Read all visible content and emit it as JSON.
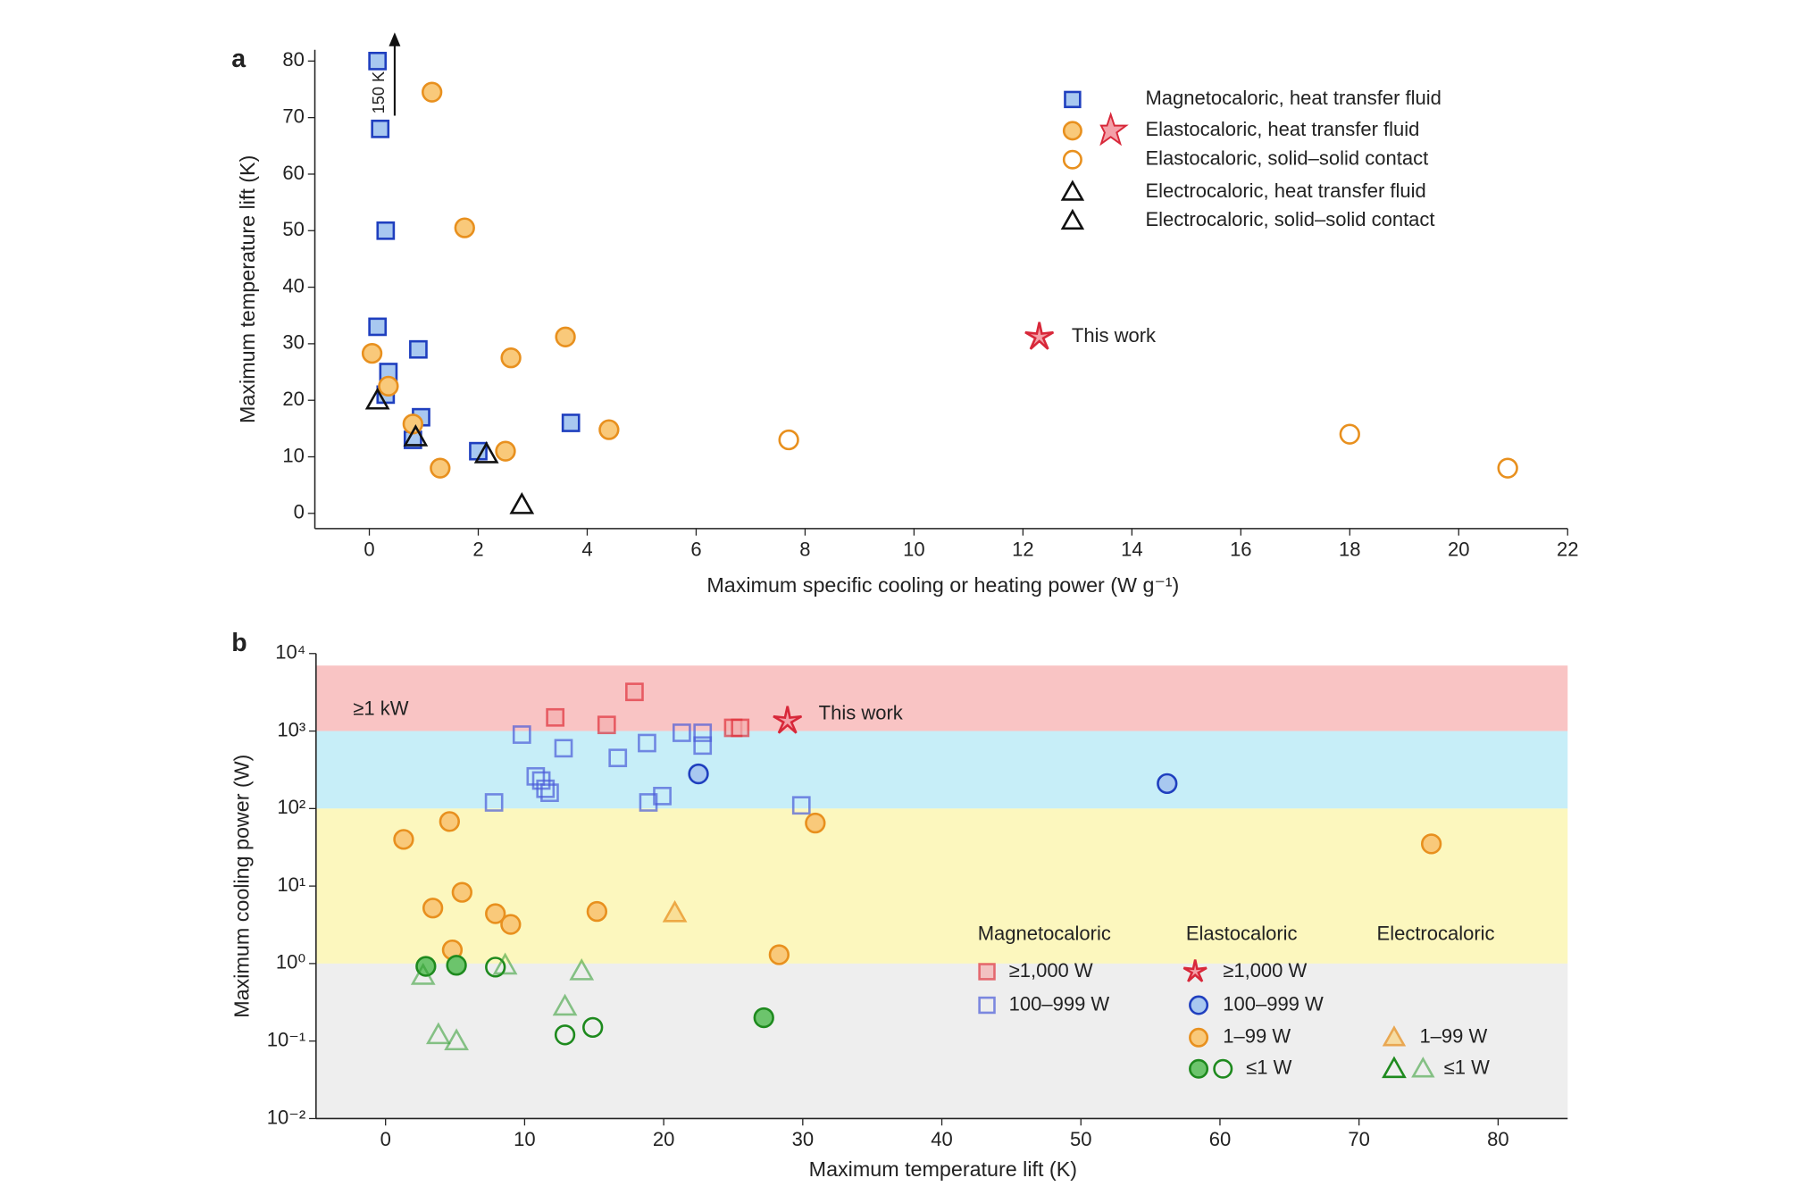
{
  "chart_data": [
    {
      "type": "scatter",
      "panel": "a",
      "x_label": "Maximum specific cooling or heating power (W g⁻¹)",
      "y_label": "Maximum temperature lift (K)",
      "arrow_label": "150 K",
      "xlim": [
        -1,
        22
      ],
      "ylim": [
        -2.7,
        82
      ],
      "xticks": [
        0,
        2,
        4,
        6,
        8,
        10,
        12,
        14,
        16,
        18,
        20,
        22
      ],
      "yticks": [
        0,
        10,
        20,
        30,
        40,
        50,
        60,
        70,
        80
      ],
      "series": [
        {
          "name": "Magnetocaloric, heat transfer fluid",
          "marker": "square",
          "color": "#1f3fbf",
          "fill": "#a8c8f0",
          "x": [
            0.15,
            0.2,
            0.3,
            0.15,
            0.9,
            0.35,
            0.3,
            0.95,
            0.8,
            2.0,
            3.7
          ],
          "values": [
            80,
            68,
            50,
            33,
            29,
            25,
            21,
            17,
            13,
            11,
            16
          ]
        },
        {
          "name": "Elastocaloric, heat transfer fluid",
          "marker": "circle",
          "color": "#e8901e",
          "fill": "#f9c97a",
          "x": [
            1.15,
            1.75,
            0.05,
            0.35,
            0.8,
            1.3,
            2.6,
            3.6,
            2.5,
            4.4
          ],
          "values": [
            74.5,
            50.5,
            28.3,
            22.5,
            15.8,
            8,
            27.5,
            31.2,
            11,
            14.8
          ]
        },
        {
          "name": "Elastocaloric, solid–solid contact",
          "marker": "circle",
          "color": "#e8901e",
          "fill": "none",
          "x": [
            7.7,
            18,
            20.9
          ],
          "values": [
            13,
            14,
            8
          ]
        },
        {
          "name": "Electrocaloric, heat transfer fluid",
          "marker": "triangle",
          "color": "#111111",
          "fill": "none",
          "x": [
            0.15,
            0.85,
            2.15
          ],
          "values": [
            20,
            13.5,
            10.5
          ]
        },
        {
          "name": "Electrocaloric, solid–solid contact",
          "marker": "triangle",
          "color": "#111111",
          "fill": "none",
          "x": [
            2.8
          ],
          "values": [
            1.5
          ]
        },
        {
          "name": "This work",
          "marker": "star",
          "color": "#d8283a",
          "fill": "#f4a0a8",
          "x": [
            12.3
          ],
          "values": [
            31.2
          ]
        }
      ]
    },
    {
      "type": "scatter",
      "panel": "b",
      "log_y": true,
      "x_label": "Maximum temperature lift (K)",
      "y_label": "Maximum cooling power (W)",
      "xlim": [
        -5,
        85
      ],
      "ylim": [
        0.01,
        10000
      ],
      "xticks": [
        0,
        10,
        20,
        30,
        40,
        50,
        60,
        70,
        80
      ],
      "yticks": [
        {
          "value": 0.01,
          "label": "10⁻²"
        },
        {
          "value": 0.1,
          "label": "10⁻¹"
        },
        {
          "value": 1,
          "label": "10⁰"
        },
        {
          "value": 10,
          "label": "10¹"
        },
        {
          "value": 100,
          "label": "10²"
        },
        {
          "value": 1000,
          "label": "10³"
        },
        {
          "value": 10000,
          "label": "10⁴"
        }
      ],
      "bands": [
        {
          "from": 1000,
          "to": 7000,
          "color": "#f7b0b0",
          "label": "≥1 kW"
        },
        {
          "from": 100,
          "to": 1000,
          "color": "#b4e8f6"
        },
        {
          "from": 1,
          "to": 100,
          "color": "#fbf4a8"
        },
        {
          "from": 0.01,
          "to": 1,
          "color": "#e8e8e8"
        }
      ],
      "legend_groups": [
        "Magnetocaloric",
        "Elastocaloric",
        "Electrocaloric"
      ],
      "series": [
        {
          "name": "≥1,000 W",
          "marker": "square",
          "color": "#e0303a",
          "fill": "#f5b0b0",
          "opacity": 0.7,
          "x": [
            12.2,
            15.9,
            17.9,
            25.0,
            25.5
          ],
          "values": [
            1500,
            1200,
            3200,
            1100,
            1100
          ]
        },
        {
          "name": "100–999 W",
          "marker": "square",
          "color": "#4a5bd8",
          "fill": "none",
          "opacity": 0.7,
          "x": [
            9.8,
            7.8,
            12.8,
            10.8,
            11.2,
            11.5,
            11.8,
            16.7,
            18.8,
            18.9,
            19.9,
            21.3,
            22.8,
            22.8,
            29.9
          ],
          "values": [
            900,
            120,
            600,
            260,
            230,
            180,
            160,
            450,
            700,
            120,
            145,
            950,
            950,
            650,
            110
          ]
        },
        {
          "name": "≥1,000 W",
          "marker": "star",
          "color": "#d8283a",
          "fill": "#f4a0a8",
          "x": [
            28.9
          ],
          "values": [
            1350
          ],
          "label": "This work"
        },
        {
          "name": "100–999 W",
          "marker": "circle",
          "color": "#1f3fbf",
          "fill": "#a8c8f0",
          "x": [
            22.5,
            56.2
          ],
          "values": [
            280,
            210
          ]
        },
        {
          "name": "1–99 W",
          "marker": "circle",
          "color": "#e8901e",
          "fill": "#f9c97a",
          "x": [
            1.3,
            4.6,
            3.4,
            5.5,
            7.9,
            9.0,
            15.2,
            4.8,
            28.3,
            30.9,
            75.2
          ],
          "values": [
            40,
            68,
            5.2,
            8.3,
            4.4,
            3.2,
            4.7,
            1.5,
            1.3,
            65,
            35
          ]
        },
        {
          "name": "≤1 W",
          "marker": "circle",
          "color": "#1e8a1e",
          "fill": "#6cc46c",
          "x": [
            2.9,
            5.1,
            27.2
          ],
          "values": [
            0.92,
            0.95,
            0.2
          ]
        },
        {
          "marker": "circle",
          "color": "#1e8a1e",
          "fill": "none",
          "x": [
            7.9,
            12.9,
            14.9
          ],
          "values": [
            0.9,
            0.12,
            0.15
          ]
        },
        {
          "name": "1–99 W",
          "marker": "triangle",
          "color": "#e8901e",
          "fill": "#f9d78a",
          "opacity": 0.75,
          "x": [
            20.8
          ],
          "values": [
            4.5
          ]
        },
        {
          "name": "≤1 W",
          "marker": "triangle",
          "color": "#2e9a2e",
          "fill": "none",
          "opacity": 0.55,
          "x": [
            2.7,
            8.6,
            14.1,
            12.9,
            3.8,
            5.1
          ],
          "values": [
            0.7,
            0.95,
            0.8,
            0.28,
            0.12,
            0.1
          ]
        }
      ]
    }
  ]
}
